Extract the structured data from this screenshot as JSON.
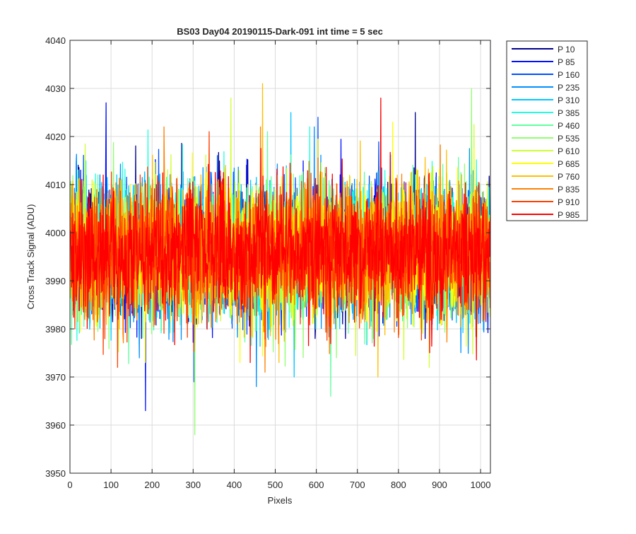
{
  "chart_data": {
    "type": "line",
    "title": "BS03 Day04 20190115-Dark-091 int time = 5 sec",
    "xlabel": "Pixels",
    "ylabel": "Cross Track Signal (ADU)",
    "xlim": [
      0,
      1024
    ],
    "ylim": [
      3950,
      4040
    ],
    "xticks": [
      0,
      100,
      200,
      300,
      400,
      500,
      600,
      700,
      800,
      900,
      1000
    ],
    "yticks": [
      3950,
      3960,
      3970,
      3980,
      3990,
      4000,
      4010,
      4020,
      4030,
      4040
    ],
    "grid": true,
    "legend_position": "outside-top-right",
    "pixel_count": 1024,
    "signal_level": 3996,
    "series": [
      {
        "name": "P 10",
        "color": "#00008f",
        "peak_hi": 4025,
        "peak_lo": 3978
      },
      {
        "name": "P 85",
        "color": "#0010ff",
        "peak_hi": 4027,
        "peak_lo": 3963
      },
      {
        "name": "P 160",
        "color": "#0050ff",
        "peak_hi": 4024,
        "peak_lo": 3969
      },
      {
        "name": "P 235",
        "color": "#0090ff",
        "peak_hi": 4022,
        "peak_lo": 3968
      },
      {
        "name": "P 310",
        "color": "#00c8ff",
        "peak_hi": 4025,
        "peak_lo": 3970
      },
      {
        "name": "P 385",
        "color": "#20ffdf",
        "peak_hi": 4022,
        "peak_lo": 3968
      },
      {
        "name": "P 460",
        "color": "#60ffa0",
        "peak_hi": 4021,
        "peak_lo": 3966
      },
      {
        "name": "P 535",
        "color": "#90ff6f",
        "peak_hi": 4030,
        "peak_lo": 3958
      },
      {
        "name": "P 610",
        "color": "#cfff30",
        "peak_hi": 4028,
        "peak_lo": 3972
      },
      {
        "name": "P 685",
        "color": "#ffff00",
        "peak_hi": 4023,
        "peak_lo": 3973
      },
      {
        "name": "P 760",
        "color": "#ffbf00",
        "peak_hi": 4031,
        "peak_lo": 3970
      },
      {
        "name": "P 835",
        "color": "#ff8000",
        "peak_hi": 4022,
        "peak_lo": 3971
      },
      {
        "name": "P 910",
        "color": "#ff4000",
        "peak_hi": 4021,
        "peak_lo": 3972
      },
      {
        "name": "P 985",
        "color": "#ff0000",
        "peak_hi": 4028,
        "peak_lo": 3973
      }
    ]
  }
}
